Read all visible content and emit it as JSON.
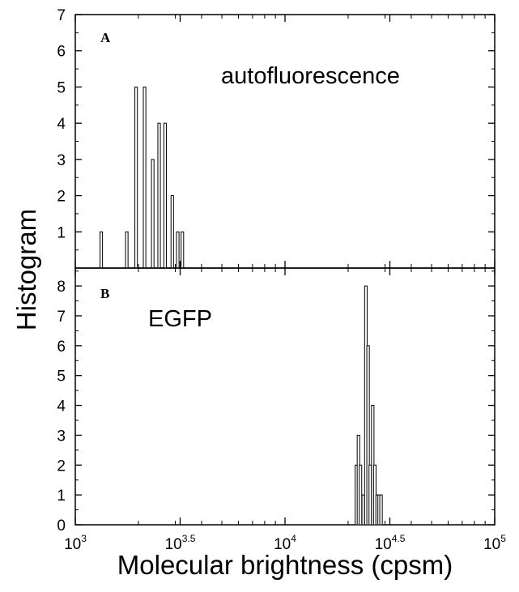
{
  "chart_data": {
    "type": "bar",
    "xlabel": "Molecular brightness (cpsm)",
    "ylabel": "Histogram",
    "x_scale": "log",
    "xlim": [
      1000,
      100000
    ],
    "x_ticks": [
      {
        "base": "10",
        "exp": "3"
      },
      {
        "base": "10",
        "exp": "3.5"
      },
      {
        "base": "10",
        "exp": "4"
      },
      {
        "base": "10",
        "exp": "4.5"
      },
      {
        "base": "10",
        "exp": "5"
      }
    ],
    "grid": false,
    "panels": [
      {
        "label": "A",
        "annotation": "autofluorescence",
        "ylim": [
          0,
          7
        ],
        "y_ticks": [
          1,
          2,
          3,
          4,
          5,
          6,
          7
        ],
        "bars": [
          {
            "x": 1330,
            "y": 1
          },
          {
            "x": 1760,
            "y": 1
          },
          {
            "x": 1950,
            "y": 5
          },
          {
            "x": 2140,
            "y": 5
          },
          {
            "x": 2340,
            "y": 3
          },
          {
            "x": 2510,
            "y": 4
          },
          {
            "x": 2680,
            "y": 4
          },
          {
            "x": 2900,
            "y": 2
          },
          {
            "x": 3080,
            "y": 1
          },
          {
            "x": 3240,
            "y": 1
          }
        ]
      },
      {
        "label": "B",
        "annotation": "EGFP",
        "ylim": [
          0,
          8.6
        ],
        "y_ticks": [
          0,
          1,
          2,
          3,
          4,
          5,
          6,
          7,
          8
        ],
        "bars": [
          {
            "x": 21900,
            "y": 2
          },
          {
            "x": 22400,
            "y": 3
          },
          {
            "x": 22900,
            "y": 2
          },
          {
            "x": 23600,
            "y": 1
          },
          {
            "x": 24300,
            "y": 8
          },
          {
            "x": 24900,
            "y": 6
          },
          {
            "x": 25500,
            "y": 2
          },
          {
            "x": 26200,
            "y": 4
          },
          {
            "x": 26800,
            "y": 2
          },
          {
            "x": 27500,
            "y": 1
          },
          {
            "x": 28100,
            "y": 1
          },
          {
            "x": 28700,
            "y": 1
          }
        ]
      }
    ]
  }
}
